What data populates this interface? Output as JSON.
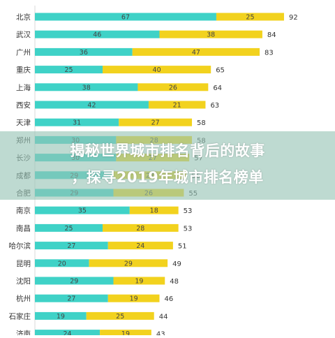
{
  "chart_data": {
    "type": "bar",
    "orientation": "horizontal",
    "stacked": true,
    "categories": [
      "北京",
      "武汉",
      "广州",
      "重庆",
      "上海",
      "西安",
      "天津",
      "郑州",
      "长沙",
      "成都",
      "合肥",
      "南京",
      "南昌",
      "哈尔滨",
      "昆明",
      "沈阳",
      "杭州",
      "石家庄",
      "济南"
    ],
    "series": [
      {
        "values": [
          67,
          46,
          36,
          25,
          38,
          42,
          31,
          30,
          30,
          29,
          29,
          35,
          25,
          27,
          20,
          29,
          27,
          19,
          24
        ],
        "color": "#3fd2c7"
      },
      {
        "values": [
          25,
          38,
          47,
          40,
          26,
          21,
          27,
          28,
          27,
          27,
          26,
          18,
          28,
          24,
          29,
          19,
          19,
          25,
          19
        ],
        "color": "#f2d21e"
      }
    ],
    "totals": [
      92,
      84,
      83,
      65,
      64,
      63,
      58,
      58,
      57,
      56,
      55,
      53,
      53,
      51,
      49,
      48,
      46,
      44,
      43
    ],
    "xlim": [
      0,
      100
    ],
    "grid": false,
    "legend": "none"
  },
  "overlay": {
    "line1": "揭秘世界城市排名背后的故事",
    "line2": "，探寻2019年城市排名榜单"
  }
}
